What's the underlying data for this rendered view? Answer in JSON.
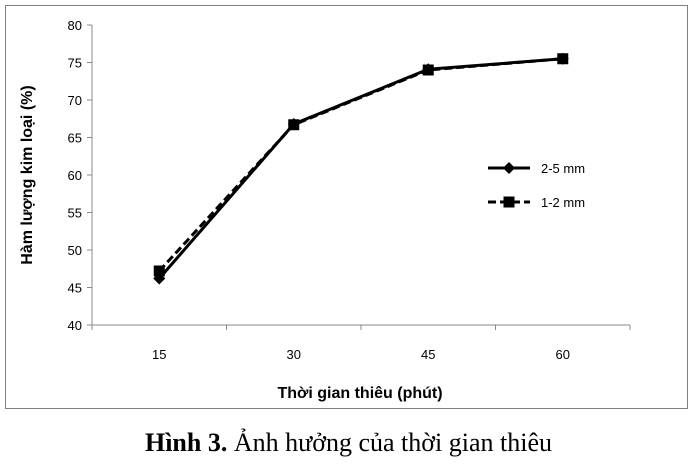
{
  "chart_data": {
    "type": "line",
    "x": [
      15,
      30,
      45,
      60
    ],
    "xticks": [
      "15",
      "30",
      "45",
      "60"
    ],
    "ylim": [
      40,
      80
    ],
    "yticks": [
      40,
      45,
      50,
      55,
      60,
      65,
      70,
      75,
      80
    ],
    "xlabel": "Thời gian thiêu (phút)",
    "ylabel": "Hàm lượng kim loại (%)",
    "grid": false,
    "legend_position": "right",
    "series": [
      {
        "name": "2-5 mm",
        "values": [
          46.2,
          66.8,
          74.1,
          75.5
        ],
        "style": "solid",
        "marker": "diamond",
        "color": "#000000"
      },
      {
        "name": "1-2 mm",
        "values": [
          47.2,
          66.7,
          74.0,
          75.5
        ],
        "style": "dashed",
        "marker": "square",
        "color": "#000000"
      }
    ]
  },
  "caption": {
    "label": "Hình 3.",
    "text": " Ảnh hưởng của thời gian thiêu"
  }
}
